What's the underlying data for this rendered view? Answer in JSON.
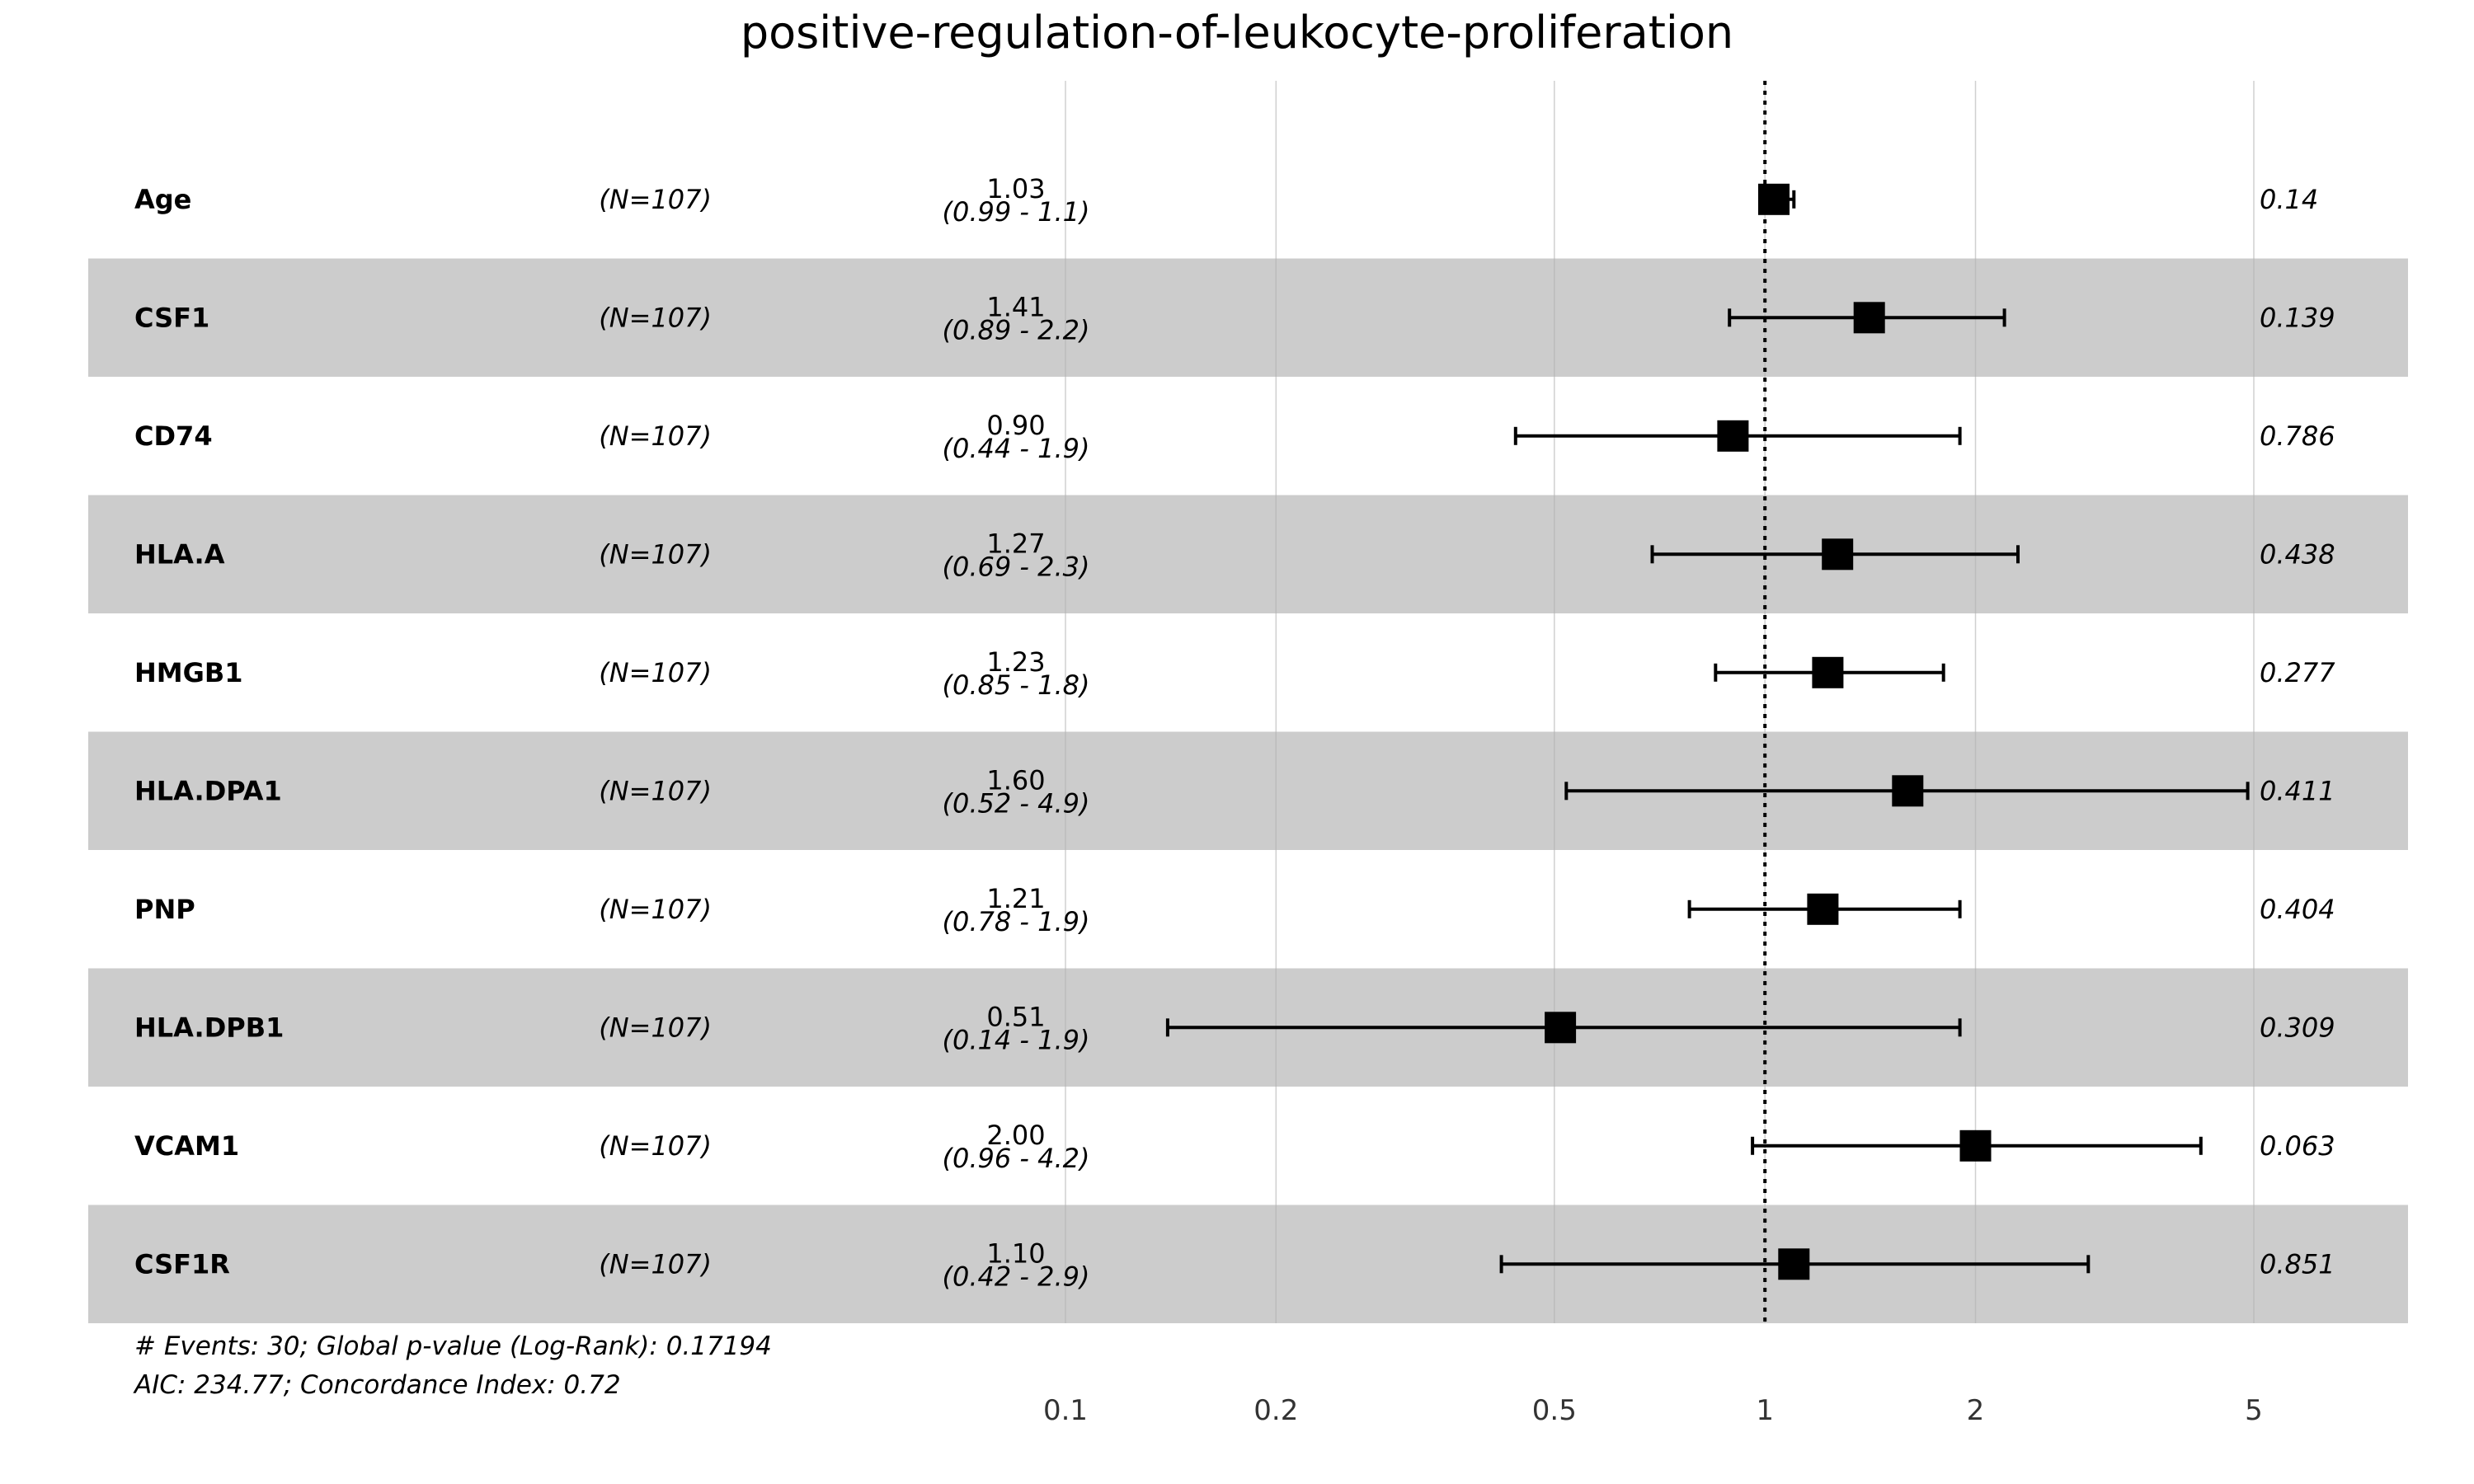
{
  "chart_data": {
    "type": "forest",
    "title": "positive-regulation-of-leukocyte-proliferation",
    "x_scale": "log",
    "xlim": [
      0.1,
      8
    ],
    "x_ticks": [
      0.1,
      0.2,
      0.5,
      1,
      2,
      5
    ],
    "x_tick_labels": [
      "0.1",
      "0.2",
      "0.5",
      "1",
      "2",
      "5"
    ],
    "reference_line": 1,
    "grid": true,
    "row_colors": [
      "#ffffff",
      "#cccccc"
    ],
    "marker_color": "#000000",
    "rows": [
      {
        "variable": "Age",
        "n": "(N=107)",
        "hr": 1.03,
        "hr_label": "1.03",
        "lower": 0.99,
        "upper": 1.1,
        "ci_label": "(0.99 - 1.1)",
        "p": "0.14"
      },
      {
        "variable": "CSF1",
        "n": "(N=107)",
        "hr": 1.41,
        "hr_label": "1.41",
        "lower": 0.89,
        "upper": 2.2,
        "ci_label": "(0.89 - 2.2)",
        "p": "0.139"
      },
      {
        "variable": "CD74",
        "n": "(N=107)",
        "hr": 0.9,
        "hr_label": "0.90",
        "lower": 0.44,
        "upper": 1.9,
        "ci_label": "(0.44 - 1.9)",
        "p": "0.786"
      },
      {
        "variable": "HLA.A",
        "n": "(N=107)",
        "hr": 1.27,
        "hr_label": "1.27",
        "lower": 0.69,
        "upper": 2.3,
        "ci_label": "(0.69 - 2.3)",
        "p": "0.438"
      },
      {
        "variable": "HMGB1",
        "n": "(N=107)",
        "hr": 1.23,
        "hr_label": "1.23",
        "lower": 0.85,
        "upper": 1.8,
        "ci_label": "(0.85 - 1.8)",
        "p": "0.277"
      },
      {
        "variable": "HLA.DPA1",
        "n": "(N=107)",
        "hr": 1.6,
        "hr_label": "1.60",
        "lower": 0.52,
        "upper": 4.9,
        "ci_label": "(0.52 - 4.9)",
        "p": "0.411"
      },
      {
        "variable": "PNP",
        "n": "(N=107)",
        "hr": 1.21,
        "hr_label": "1.21",
        "lower": 0.78,
        "upper": 1.9,
        "ci_label": "(0.78 - 1.9)",
        "p": "0.404"
      },
      {
        "variable": "HLA.DPB1",
        "n": "(N=107)",
        "hr": 0.51,
        "hr_label": "0.51",
        "lower": 0.14,
        "upper": 1.9,
        "ci_label": "(0.14 - 1.9)",
        "p": "0.309"
      },
      {
        "variable": "VCAM1",
        "n": "(N=107)",
        "hr": 2.0,
        "hr_label": "2.00",
        "lower": 0.96,
        "upper": 4.2,
        "ci_label": "(0.96 - 4.2)",
        "p": "0.063"
      },
      {
        "variable": "CSF1R",
        "n": "(N=107)",
        "hr": 1.1,
        "hr_label": "1.10",
        "lower": 0.42,
        "upper": 2.9,
        "ci_label": "(0.42 - 2.9)",
        "p": "0.851"
      }
    ],
    "footnotes": [
      "# Events: 30; Global p-value (Log-Rank): 0.17194",
      "AIC: 234.77; Concordance Index: 0.72"
    ]
  }
}
